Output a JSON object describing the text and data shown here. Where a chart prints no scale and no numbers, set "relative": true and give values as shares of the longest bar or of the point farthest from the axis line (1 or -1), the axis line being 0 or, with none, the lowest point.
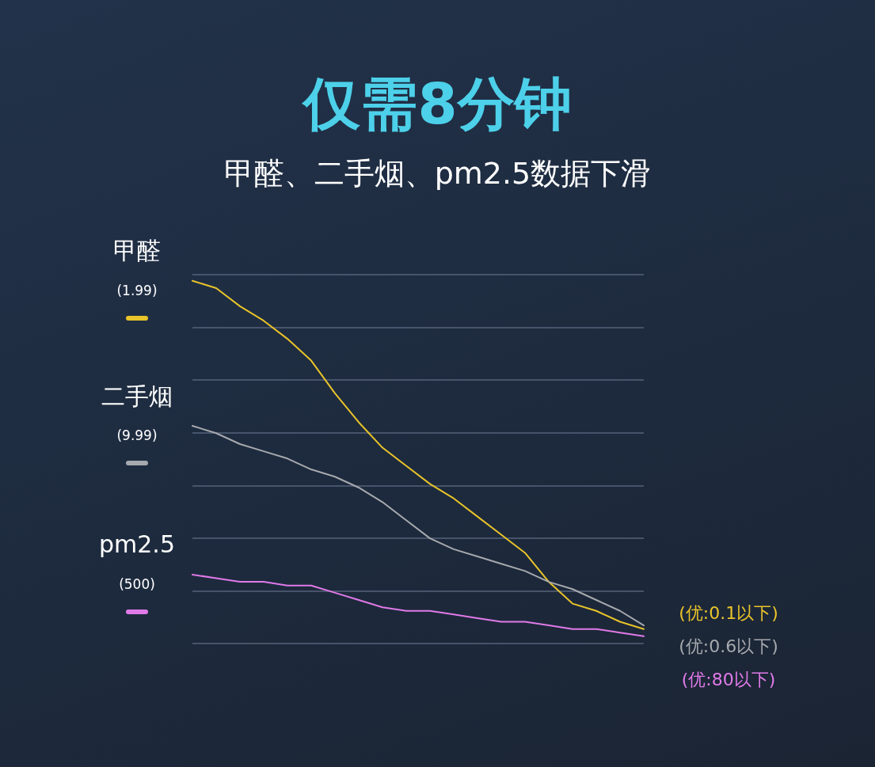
{
  "chart_data": {
    "type": "line",
    "title": "仅需8分钟",
    "subtitle": "甲醛、二手烟、pm2.5数据下滑",
    "relative": true,
    "grid": "y",
    "marker": "none",
    "line_style": "solid",
    "categories": [
      null,
      null,
      null,
      null,
      null,
      null,
      null,
      null,
      null,
      null,
      null,
      null,
      null,
      null,
      null,
      null,
      null,
      null,
      null,
      null
    ],
    "series": [
      {
        "name": "甲醛",
        "color": "#e8c32a",
        "values": [
          1,
          0.98,
          0.93,
          0.89,
          0.84,
          0.78,
          0.69,
          0.61,
          0.54,
          0.49,
          0.44,
          0.4,
          0.35,
          0.3,
          0.25,
          0.17,
          0.11,
          0.09,
          0.06,
          0.04
        ]
      },
      {
        "name": "二手烟",
        "color": "#a6a9ad",
        "values": [
          0.6,
          0.58,
          0.55,
          0.53,
          0.51,
          0.48,
          0.46,
          0.43,
          0.39,
          0.34,
          0.29,
          0.26,
          0.24,
          0.22,
          0.2,
          0.17,
          0.15,
          0.12,
          0.09,
          0.05
        ]
      },
      {
        "name": "pm2.5",
        "color": "#e07ae8",
        "values": [
          0.19,
          0.18,
          0.17,
          0.17,
          0.16,
          0.16,
          0.14,
          0.12,
          0.1,
          0.09,
          0.09,
          0.08,
          0.07,
          0.06,
          0.06,
          0.05,
          0.04,
          0.04,
          0.03,
          0.02
        ]
      }
    ],
    "annotations": [
      "(1.99)",
      "(9.99)",
      "(500)",
      "(优:0.1以下)",
      "(优:0.6以下)",
      "(优:80以下)"
    ]
  }
}
